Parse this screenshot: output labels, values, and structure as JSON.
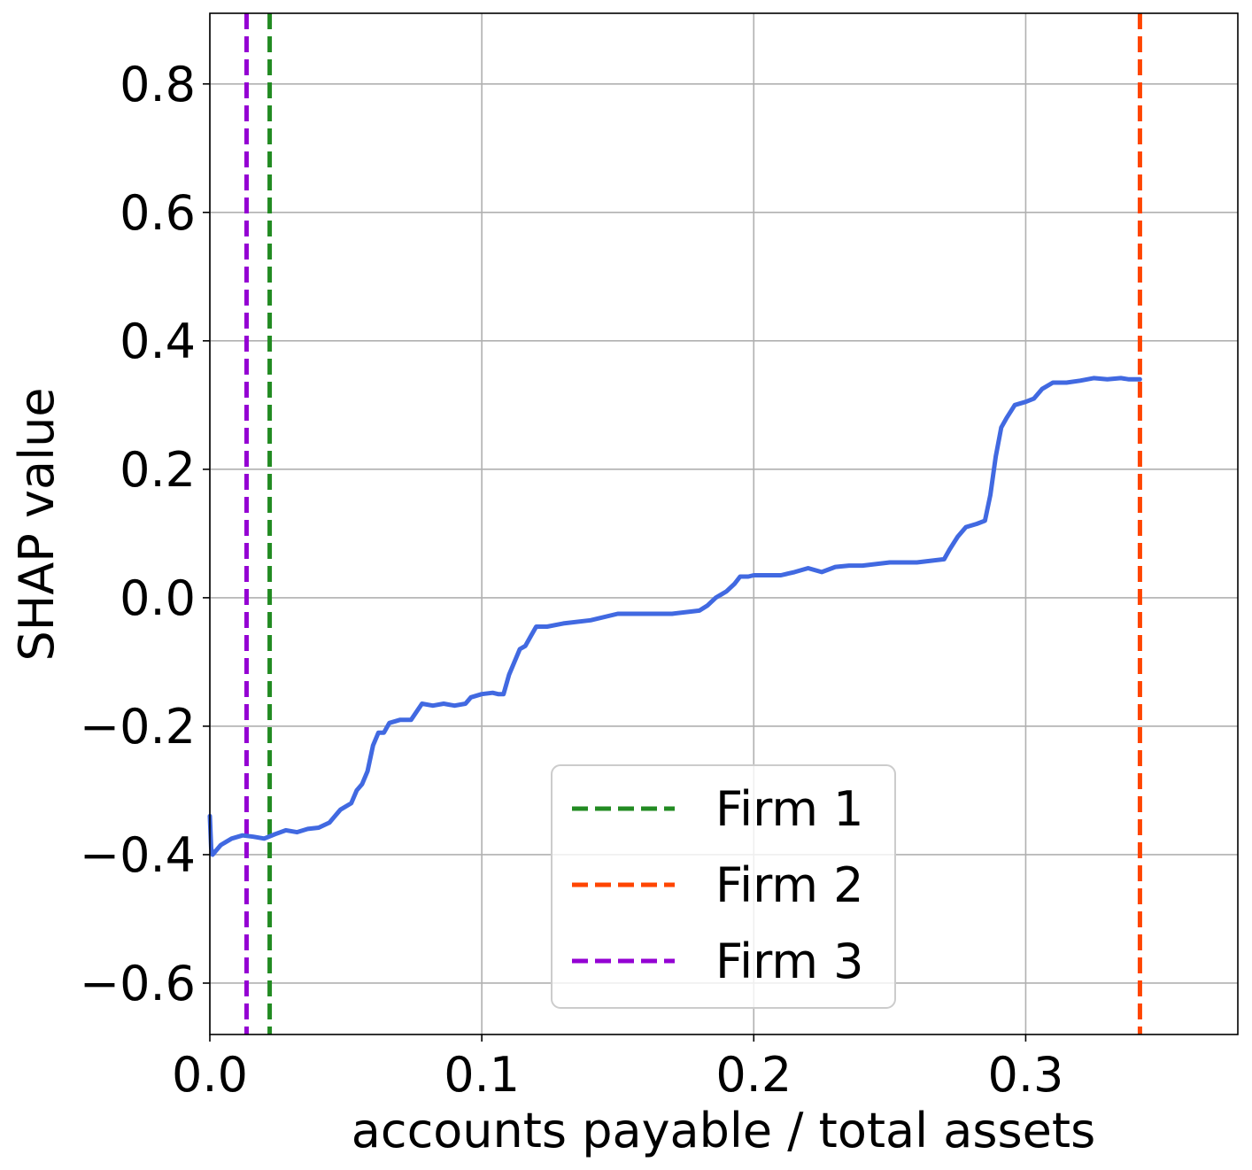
{
  "chart_data": {
    "type": "line",
    "title": "",
    "xlabel": "accounts payable / total assets",
    "ylabel": "SHAP value",
    "xlim": [
      0.0,
      0.378
    ],
    "ylim": [
      -0.68,
      0.91
    ],
    "x_ticks": [
      {
        "value": 0.0,
        "label": "0.0"
      },
      {
        "value": 0.1,
        "label": "0.1"
      },
      {
        "value": 0.2,
        "label": "0.2"
      },
      {
        "value": 0.3,
        "label": "0.3"
      }
    ],
    "y_ticks": [
      {
        "value": 0.8,
        "label": "0.8"
      },
      {
        "value": 0.6,
        "label": "0.6"
      },
      {
        "value": 0.4,
        "label": "0.4"
      },
      {
        "value": 0.2,
        "label": "0.2"
      },
      {
        "value": 0.0,
        "label": "0.0"
      },
      {
        "value": -0.2,
        "label": "−0.2"
      },
      {
        "value": -0.4,
        "label": "−0.4"
      },
      {
        "value": -0.6,
        "label": "−0.6"
      }
    ],
    "grid": true,
    "legend_position": "lower-center",
    "series": [
      {
        "color": "#4169e1",
        "style": "solid",
        "x": [
          0.0,
          0.0005,
          0.001,
          0.004,
          0.008,
          0.012,
          0.016,
          0.02,
          0.024,
          0.028,
          0.032,
          0.036,
          0.04,
          0.044,
          0.048,
          0.052,
          0.054,
          0.056,
          0.058,
          0.06,
          0.062,
          0.064,
          0.066,
          0.07,
          0.074,
          0.078,
          0.082,
          0.086,
          0.09,
          0.094,
          0.096,
          0.1,
          0.104,
          0.106,
          0.108,
          0.11,
          0.114,
          0.116,
          0.118,
          0.12,
          0.124,
          0.13,
          0.14,
          0.15,
          0.16,
          0.17,
          0.18,
          0.183,
          0.186,
          0.188,
          0.19,
          0.193,
          0.195,
          0.198,
          0.2,
          0.21,
          0.215,
          0.22,
          0.225,
          0.23,
          0.235,
          0.24,
          0.25,
          0.26,
          0.27,
          0.272,
          0.275,
          0.278,
          0.282,
          0.285,
          0.287,
          0.289,
          0.291,
          0.293,
          0.296,
          0.3,
          0.303,
          0.306,
          0.31,
          0.315,
          0.32,
          0.325,
          0.33,
          0.335,
          0.338,
          0.342
        ],
        "y": [
          -0.34,
          -0.39,
          -0.4,
          -0.385,
          -0.375,
          -0.37,
          -0.372,
          -0.375,
          -0.368,
          -0.362,
          -0.365,
          -0.36,
          -0.358,
          -0.35,
          -0.33,
          -0.32,
          -0.3,
          -0.29,
          -0.27,
          -0.23,
          -0.21,
          -0.21,
          -0.195,
          -0.19,
          -0.19,
          -0.165,
          -0.168,
          -0.165,
          -0.168,
          -0.165,
          -0.155,
          -0.15,
          -0.148,
          -0.15,
          -0.15,
          -0.12,
          -0.08,
          -0.075,
          -0.06,
          -0.045,
          -0.045,
          -0.04,
          -0.035,
          -0.025,
          -0.025,
          -0.025,
          -0.02,
          -0.012,
          0.0,
          0.005,
          0.01,
          0.022,
          0.033,
          0.033,
          0.035,
          0.035,
          0.04,
          0.046,
          0.04,
          0.048,
          0.05,
          0.05,
          0.055,
          0.055,
          0.06,
          0.075,
          0.095,
          0.11,
          0.115,
          0.12,
          0.16,
          0.22,
          0.265,
          0.28,
          0.3,
          0.305,
          0.31,
          0.325,
          0.335,
          0.335,
          0.338,
          0.342,
          0.34,
          0.342,
          0.34,
          0.34
        ]
      }
    ],
    "vlines": [
      {
        "name": "Firm 1",
        "x": 0.022,
        "color": "#228b22",
        "style": "dashed"
      },
      {
        "name": "Firm 2",
        "x": 0.342,
        "color": "#ff4500",
        "style": "dashed"
      },
      {
        "name": "Firm 3",
        "x": 0.0135,
        "color": "#9400d3",
        "style": "dashed"
      }
    ],
    "legend": [
      {
        "label": "Firm 1",
        "color": "#228b22"
      },
      {
        "label": "Firm 2",
        "color": "#ff4500"
      },
      {
        "label": "Firm 3",
        "color": "#9400d3"
      }
    ]
  }
}
